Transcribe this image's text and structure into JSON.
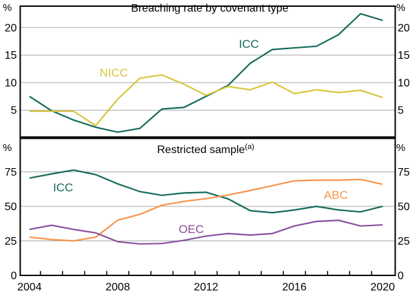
{
  "figure": {
    "unit_label": "%",
    "background": "#ffffff",
    "grid_color": "#a9a9a9",
    "frame_color": "#000000"
  },
  "x_axis": {
    "years": [
      2004,
      2005,
      2006,
      2007,
      2008,
      2009,
      2010,
      2011,
      2012,
      2013,
      2014,
      2015,
      2016,
      2017,
      2018,
      2019,
      2020
    ],
    "tick_labels": [
      "2004",
      "2008",
      "2012",
      "2016",
      "2020"
    ],
    "tick_label_years": [
      2004,
      2008,
      2012,
      2016,
      2020
    ]
  },
  "chart_data": [
    {
      "type": "line",
      "title": "Breaching rate by covenant type",
      "unit": "%",
      "x": [
        2004,
        2005,
        2006,
        2007,
        2008,
        2009,
        2010,
        2011,
        2012,
        2013,
        2014,
        2015,
        2016,
        2017,
        2018,
        2019,
        2020
      ],
      "ylim": [
        0,
        24
      ],
      "yticks": [
        5,
        10,
        15,
        20
      ],
      "grid_yticks": [
        5,
        10,
        15,
        20
      ],
      "grid": true,
      "legend_position": "inline-labels",
      "series": [
        {
          "name": "ICC",
          "color": "#166a5b",
          "values": [
            7.5,
            4.9,
            3.2,
            1.9,
            1.0,
            1.7,
            5.2,
            5.5,
            7.5,
            9.5,
            13.5,
            16.0,
            16.3,
            16.6,
            18.7,
            22.5,
            21.3
          ]
        },
        {
          "name": "NICC",
          "color": "#d9c53f",
          "values": [
            4.8,
            4.8,
            4.8,
            2.2,
            7.0,
            10.8,
            11.4,
            9.7,
            7.7,
            9.3,
            8.7,
            10.1,
            8.0,
            8.7,
            8.2,
            8.6,
            7.3
          ]
        }
      ]
    },
    {
      "type": "line",
      "title": "Restricted sample",
      "title_superscript": "(a)",
      "unit": "%",
      "x": [
        2004,
        2005,
        2006,
        2007,
        2008,
        2009,
        2010,
        2011,
        2012,
        2013,
        2014,
        2015,
        2016,
        2017,
        2018,
        2019,
        2020
      ],
      "ylim": [
        0,
        98.5
      ],
      "yticks": [
        0,
        25,
        50,
        75
      ],
      "grid_yticks": [
        25,
        50,
        75
      ],
      "grid": true,
      "legend_position": "inline-labels",
      "series": [
        {
          "name": "ICC",
          "color": "#166a5b",
          "values": [
            70.5,
            73.5,
            76.3,
            73.0,
            66.3,
            60.7,
            58.0,
            59.7,
            60.2,
            55.4,
            46.9,
            45.4,
            47.4,
            50.0,
            47.4,
            46.0,
            50.0
          ]
        },
        {
          "name": "ABC",
          "color": "#f7944d",
          "values": [
            27.7,
            26.0,
            25.0,
            27.7,
            40.0,
            44.2,
            50.8,
            53.6,
            55.6,
            58.2,
            61.5,
            65.0,
            68.5,
            69.0,
            69.0,
            69.5,
            66.0
          ]
        },
        {
          "name": "OEC",
          "color": "#8951a0",
          "values": [
            33.3,
            36.3,
            33.3,
            30.8,
            24.4,
            22.8,
            23.1,
            25.4,
            28.5,
            30.3,
            29.2,
            30.3,
            35.8,
            39.1,
            39.9,
            35.8,
            36.6
          ]
        }
      ]
    }
  ]
}
